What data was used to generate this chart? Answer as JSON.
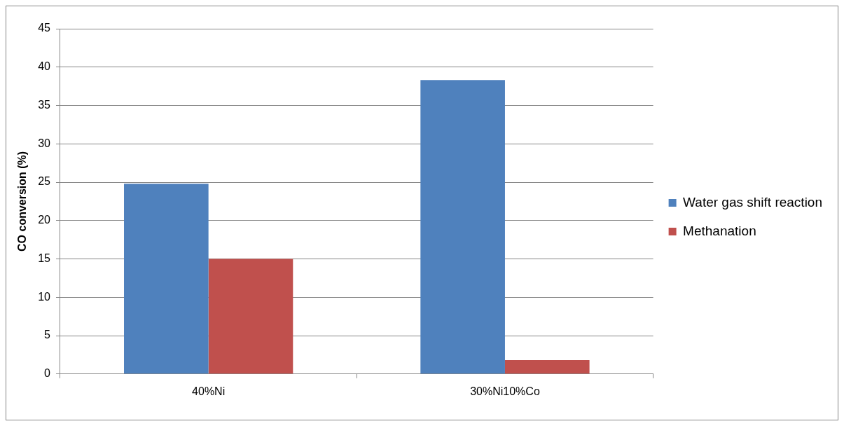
{
  "chart_data": {
    "type": "bar",
    "ylabel": "CO conversion (%)",
    "categories": [
      "40%Ni",
      "30%Ni10%Co"
    ],
    "series": [
      {
        "name": "Water gas shift reaction",
        "color": "#4f81bd",
        "values": [
          24.8,
          38.3
        ]
      },
      {
        "name": "Methanation",
        "color": "#c0504d",
        "values": [
          15.0,
          1.8
        ]
      }
    ],
    "ylim": [
      0,
      45
    ],
    "yticks": [
      0,
      5,
      10,
      15,
      20,
      25,
      30,
      35,
      40,
      45
    ],
    "grid": "y",
    "legend": "right"
  }
}
